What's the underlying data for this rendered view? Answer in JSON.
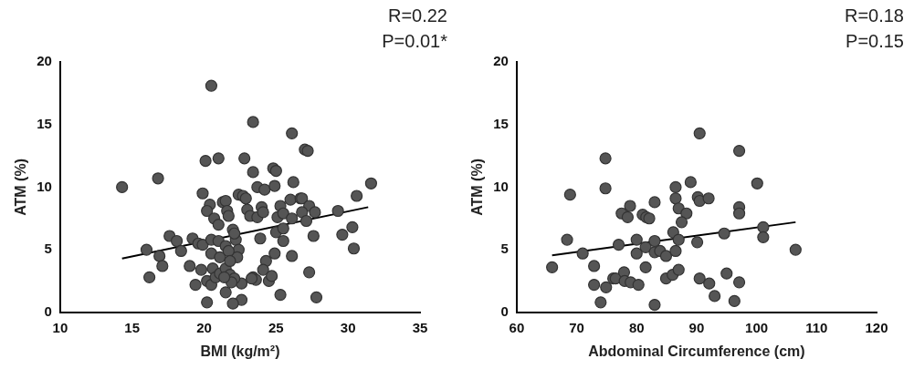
{
  "chart_data": [
    {
      "type": "scatter",
      "xlabel": "BMI (kg/m²)",
      "ylabel": "ATM (%)",
      "annotations": [
        "R=0.22",
        "P=0.01*"
      ],
      "xlim": [
        10,
        35
      ],
      "xticks": [
        10,
        15,
        20,
        25,
        30,
        35
      ],
      "ylim": [
        0,
        20
      ],
      "yticks": [
        0,
        5,
        10,
        15,
        20
      ],
      "series": [
        {
          "type": "scatter",
          "marker": "circle",
          "color": "#555555",
          "x": [
            14.3,
            20.5,
            23.4,
            26.1,
            27.0,
            27.2,
            20.1,
            21.0,
            22.8,
            16.8,
            23.4,
            24.8,
            25.0,
            23.7,
            24.2,
            24.9,
            26.2,
            31.6,
            30.6,
            19.9,
            22.4,
            22.7,
            22.9,
            21.3,
            21.5,
            20.4,
            20.2,
            26.0,
            26.7,
            26.8,
            25.3,
            27.3,
            23.0,
            23.2,
            23.7,
            24.0,
            24.1,
            21.6,
            21.7,
            20.7,
            21.0,
            25.1,
            25.5,
            26.1,
            26.8,
            27.1,
            27.7,
            29.3,
            30.3,
            29.6,
            30.4,
            27.6,
            22.0,
            22.2,
            22.1,
            23.9,
            25.0,
            25.5,
            25.5,
            26.1,
            27.3,
            27.8,
            25.3,
            24.9,
            24.3,
            24.1,
            24.5,
            24.7,
            23.4,
            23.6,
            23.3,
            22.4,
            22.3,
            22.6,
            22.6,
            22.0,
            21.5,
            20.2,
            17.6,
            18.1,
            18.4,
            16.0,
            16.9,
            16.2,
            17.1,
            19.0,
            19.2,
            19.6,
            19.9,
            19.8,
            19.4,
            20.5,
            21.0,
            20.5,
            21.1,
            20.6,
            20.2,
            20.5,
            20.8,
            21.1,
            21.5,
            21.8,
            22.1,
            21.5,
            21.7,
            21.9,
            21.4,
            21.8
          ],
          "values": [
            10.0,
            18.1,
            15.2,
            14.3,
            13.0,
            12.9,
            12.1,
            12.3,
            12.3,
            10.7,
            11.2,
            11.5,
            11.3,
            10.0,
            9.8,
            10.1,
            10.4,
            10.3,
            9.3,
            9.5,
            9.4,
            9.3,
            9.1,
            8.8,
            8.9,
            8.6,
            8.1,
            9.0,
            9.1,
            9.1,
            8.5,
            8.5,
            8.2,
            7.7,
            7.6,
            8.4,
            8.0,
            8.1,
            7.7,
            7.5,
            7.0,
            7.6,
            7.9,
            7.5,
            8.0,
            7.3,
            8.0,
            8.1,
            6.8,
            6.2,
            5.1,
            6.1,
            6.6,
            5.8,
            6.3,
            5.9,
            6.4,
            6.7,
            5.7,
            4.5,
            3.2,
            1.2,
            1.4,
            4.7,
            4.1,
            3.4,
            2.5,
            2.9,
            2.8,
            2.6,
            2.7,
            5.0,
            4.4,
            2.3,
            1.0,
            0.7,
            1.6,
            0.8,
            6.1,
            5.7,
            4.9,
            5.0,
            4.5,
            2.8,
            3.7,
            3.7,
            5.9,
            5.5,
            5.4,
            3.4,
            2.2,
            5.8,
            5.7,
            4.7,
            4.4,
            3.5,
            2.5,
            2.2,
            2.8,
            3.1,
            3.5,
            3.0,
            2.7,
            5.3,
            4.9,
            2.4,
            2.8,
            4.1
          ]
        },
        {
          "type": "line",
          "color": "#000000",
          "x": [
            14.3,
            31.4
          ],
          "values": [
            4.3,
            8.4
          ]
        }
      ]
    },
    {
      "type": "scatter",
      "xlabel": "Abdominal Circumference (cm)",
      "ylabel": "ATM (%)",
      "annotations": [
        "R=0.18",
        "P=0.15"
      ],
      "xlim": [
        60,
        120
      ],
      "xticks": [
        60,
        70,
        80,
        90,
        100,
        110,
        120
      ],
      "ylim": [
        0,
        20
      ],
      "yticks": [
        0,
        5,
        10,
        15,
        20
      ],
      "series": [
        {
          "type": "scatter",
          "marker": "circle",
          "color": "#555555",
          "x": [
            65.9,
            68.4,
            68.9,
            71.0,
            72.9,
            72.9,
            74.0,
            74.9,
            74.8,
            74.8,
            76.1,
            76.5,
            77.0,
            77.5,
            78.5,
            78.9,
            77.9,
            78.0,
            79.0,
            80.3,
            80.0,
            80.0,
            81.0,
            81.6,
            82.1,
            81.5,
            81.5,
            83.0,
            83.0,
            83.0,
            83.9,
            84.9,
            83.0,
            86.5,
            84.9,
            86.0,
            87.0,
            86.1,
            86.5,
            86.5,
            87.0,
            88.3,
            87.5,
            87.0,
            89.0,
            90.1,
            90.5,
            90.2,
            90.5,
            92.0,
            90.5,
            92.1,
            93.0,
            94.6,
            95.0,
            96.3,
            97.1,
            97.1,
            97.1,
            97.1,
            100.1,
            101.1,
            101.1,
            106.5
          ],
          "values": [
            3.6,
            5.8,
            9.4,
            4.7,
            3.7,
            2.2,
            0.8,
            2.0,
            12.3,
            9.9,
            2.7,
            2.7,
            5.4,
            7.9,
            7.6,
            8.5,
            3.2,
            2.5,
            2.4,
            2.2,
            5.8,
            4.7,
            7.8,
            7.6,
            7.5,
            5.2,
            3.6,
            8.8,
            5.7,
            4.8,
            4.9,
            4.5,
            0.6,
            4.9,
            2.7,
            3.0,
            3.4,
            6.4,
            10.0,
            9.1,
            8.3,
            7.9,
            7.2,
            5.8,
            10.4,
            5.6,
            14.3,
            9.2,
            8.9,
            9.1,
            2.7,
            2.3,
            1.3,
            6.3,
            3.1,
            0.9,
            12.9,
            8.4,
            7.9,
            2.4,
            10.3,
            6.8,
            6.0,
            5.0
          ]
        },
        {
          "type": "line",
          "color": "#000000",
          "x": [
            65.9,
            106.5
          ],
          "values": [
            4.55,
            7.2
          ]
        }
      ]
    }
  ]
}
